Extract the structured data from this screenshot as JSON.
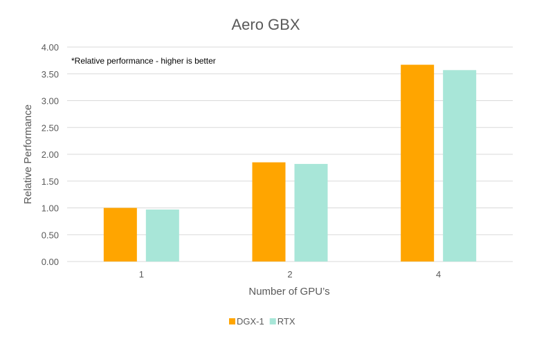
{
  "chart_data": {
    "type": "bar",
    "title": "Aero GBX",
    "annotation": "*Relative performance - higher is better",
    "xlabel": "Number of GPU’s",
    "ylabel": "Relative Performance",
    "categories": [
      "1",
      "2",
      "4"
    ],
    "series": [
      {
        "name": "DGX-1",
        "color": "#ffa500",
        "values": [
          1.0,
          1.85,
          3.67
        ]
      },
      {
        "name": "RTX",
        "color": "#a8e6d8",
        "values": [
          0.97,
          1.82,
          3.57
        ]
      }
    ],
    "ylim": [
      0,
      4
    ],
    "yticks": [
      "0.00",
      "0.50",
      "1.00",
      "1.50",
      "2.00",
      "2.50",
      "3.00",
      "3.50",
      "4.00"
    ],
    "grid": true,
    "legend": "bottom"
  }
}
